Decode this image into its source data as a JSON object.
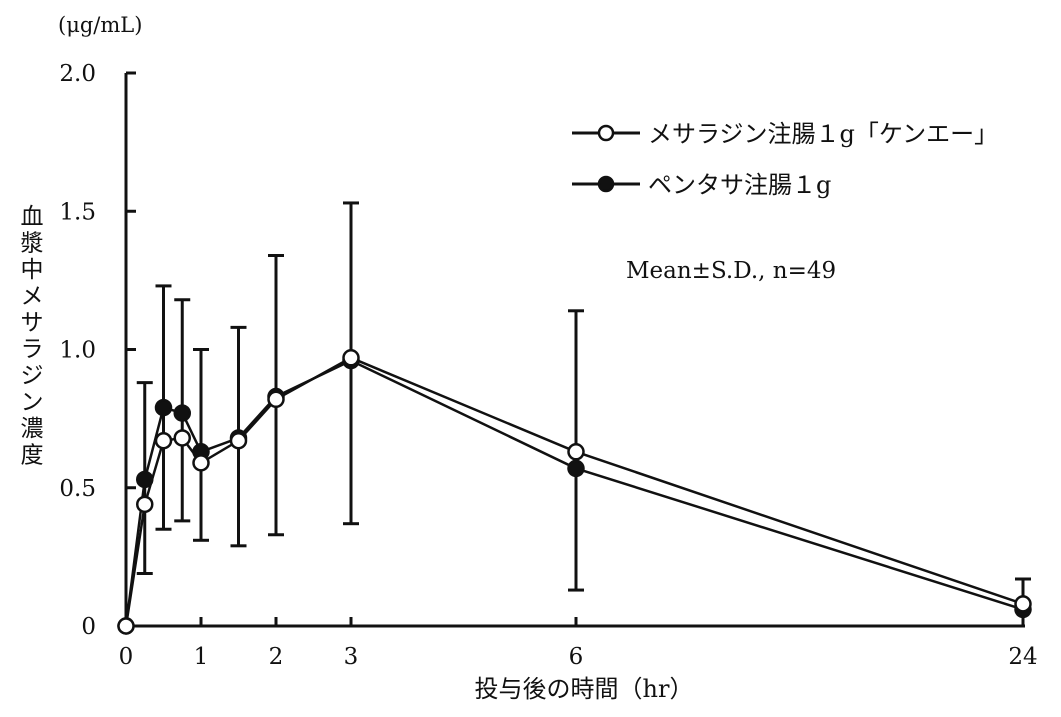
{
  "chart_data": {
    "type": "line",
    "title": "",
    "unit_label": "(μg/mL)",
    "ylabel": "血漿中メサラジン濃度",
    "xlabel": "投与後の時間（hr）",
    "annotation": "Mean±S.D.,  n=49",
    "ylim": [
      0,
      2.0
    ],
    "y_ticks": [
      0,
      0.5,
      1.0,
      1.5,
      2.0
    ],
    "y_tick_labels": [
      "0",
      "0.5",
      "1.0",
      "1.5",
      "2.0"
    ],
    "x_ticks": [
      0,
      1,
      2,
      3,
      6,
      24
    ],
    "x_tick_labels": [
      "0",
      "1",
      "2",
      "3",
      "6",
      "24"
    ],
    "x_axis_note": "x axis is not to scale: 0–6 hr evenly spaced per hour, 6→24 hr compressed",
    "legend_position": "top-right",
    "grid": false,
    "series": [
      {
        "name": "メサラジン注腸１g「ケンエー」",
        "marker": "open-circle",
        "x": [
          0,
          0.25,
          0.5,
          0.75,
          1,
          1.5,
          2,
          3,
          6,
          24
        ],
        "y": [
          0,
          0.44,
          0.67,
          0.68,
          0.59,
          0.67,
          0.82,
          0.97,
          0.63,
          0.08
        ]
      },
      {
        "name": "ペンタサ注腸１g",
        "marker": "filled-circle",
        "x": [
          0,
          0.25,
          0.5,
          0.75,
          1,
          1.5,
          2,
          3,
          6,
          24
        ],
        "y": [
          0,
          0.53,
          0.79,
          0.77,
          0.63,
          0.68,
          0.83,
          0.96,
          0.57,
          0.06
        ],
        "error_low": [
          null,
          0.19,
          0.35,
          0.38,
          0.31,
          0.29,
          0.33,
          0.37,
          0.13,
          null
        ],
        "error_high": [
          null,
          0.88,
          1.23,
          1.18,
          1.0,
          1.08,
          1.34,
          1.53,
          1.14,
          0.17
        ]
      }
    ]
  }
}
